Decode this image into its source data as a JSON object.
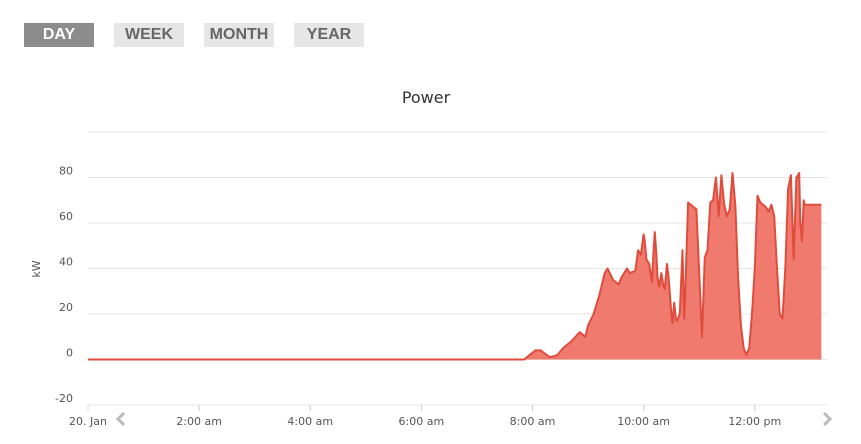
{
  "range_tabs": {
    "day": "DAY",
    "week": "WEEK",
    "month": "MONTH",
    "year": "YEAR",
    "active": "day"
  },
  "colors": {
    "series_line": "#e04c3c",
    "series_fill": "#f07a6e",
    "grid": "#e6e6e6",
    "tab_active_bg": "#8c8c8c",
    "tab_bg": "#e6e6e6"
  },
  "nav": {
    "prev_icon": "chevron-left-icon",
    "next_icon": "chevron-right-icon"
  },
  "chart_data": {
    "type": "area",
    "title": "Power",
    "ylabel": "kW",
    "xlabel": "",
    "ylim": [
      -20,
      100
    ],
    "yticks": [
      -20,
      0,
      20,
      40,
      60,
      80
    ],
    "xlim_hours": [
      0,
      13.3
    ],
    "xticks": [
      {
        "hour": 0,
        "label": "20. Jan"
      },
      {
        "hour": 2,
        "label": "2:00 am"
      },
      {
        "hour": 4,
        "label": "4:00 am"
      },
      {
        "hour": 6,
        "label": "6:00 am"
      },
      {
        "hour": 8,
        "label": "8:00 am"
      },
      {
        "hour": 10,
        "label": "10:00 am"
      },
      {
        "hour": 12,
        "label": "12:00 pm"
      }
    ],
    "grid": true,
    "legend": "none",
    "series": [
      {
        "x": [
          0,
          7.85,
          7.95,
          8.05,
          8.15,
          8.25,
          8.32,
          8.45,
          8.55,
          8.7,
          8.85,
          8.95,
          9.0,
          9.1,
          9.2,
          9.3,
          9.35,
          9.45,
          9.55,
          9.6,
          9.7,
          9.75,
          9.85,
          9.9,
          9.95,
          10.0,
          10.02,
          10.05,
          10.1,
          10.15,
          10.18,
          10.2,
          10.23,
          10.25,
          10.28,
          10.32,
          10.35,
          10.38,
          10.42,
          10.45,
          10.5,
          10.52,
          10.55,
          10.58,
          10.6,
          10.65,
          10.7,
          10.73,
          10.75,
          10.8,
          10.85,
          10.9,
          10.95,
          11.0,
          11.05,
          11.1,
          11.15,
          11.2,
          11.25,
          11.3,
          11.35,
          11.4,
          11.45,
          11.5,
          11.55,
          11.6,
          11.65,
          11.7,
          11.75,
          11.8,
          11.85,
          11.9,
          11.95,
          12.0,
          12.05,
          12.1,
          12.15,
          12.2,
          12.25,
          12.3,
          12.35,
          12.4,
          12.45,
          12.5,
          12.55,
          12.6,
          12.65,
          12.7,
          12.75,
          12.8,
          12.82,
          12.85,
          12.88,
          12.9,
          12.92,
          12.95,
          12.97,
          13.0,
          13.05,
          13.08,
          13.1,
          13.15,
          13.2
        ],
        "y": [
          0,
          0,
          2,
          4,
          4,
          2,
          1,
          2,
          5,
          8,
          12,
          10,
          15,
          20,
          28,
          38,
          40,
          35,
          33,
          36,
          40,
          38,
          39,
          48,
          46,
          55,
          52,
          44,
          42,
          34,
          48,
          56,
          46,
          36,
          32,
          38,
          33,
          31,
          42,
          36,
          20,
          16,
          25,
          18,
          17,
          20,
          48,
          18,
          30,
          69,
          68,
          67,
          66,
          38,
          10,
          45,
          48,
          69,
          70,
          80,
          63,
          81,
          68,
          63,
          66,
          82,
          68,
          36,
          15,
          5,
          2,
          5,
          20,
          40,
          72,
          69,
          68,
          67,
          65,
          68,
          63,
          40,
          20,
          18,
          40,
          75,
          81,
          44,
          80,
          82,
          60,
          52,
          70,
          68,
          68,
          68,
          68,
          68,
          68,
          68,
          68,
          68,
          68
        ]
      }
    ]
  }
}
